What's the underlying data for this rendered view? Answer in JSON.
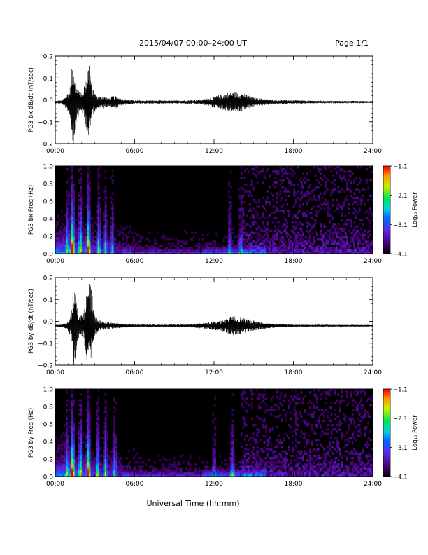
{
  "header": {
    "title": "2015/04/07  00:00–24:00 UT",
    "page": "Page 1/1"
  },
  "footer": {
    "xlabel": "Universal Time (hh:mm)"
  },
  "chart_data": [
    {
      "type": "line",
      "ylabel": "PG3 bx dB/dt (nT/sec)",
      "xlim": [
        0,
        24
      ],
      "ylim": [
        -0.2,
        0.2
      ],
      "yticks": [
        "0.2",
        "0.1",
        "0.0",
        "−0.1",
        "−0.2"
      ],
      "xticks": [
        "00:00",
        "06:00",
        "12:00",
        "18:00",
        "24:00"
      ],
      "baseline": -0.01,
      "envelope": [
        {
          "x": 0.0,
          "amp": 0.006
        },
        {
          "x": 0.5,
          "amp": 0.008
        },
        {
          "x": 0.8,
          "amp": 0.03
        },
        {
          "x": 1.1,
          "amp": 0.06
        },
        {
          "x": 1.35,
          "amp": 0.21
        },
        {
          "x": 1.6,
          "amp": 0.08
        },
        {
          "x": 2.0,
          "amp": 0.04
        },
        {
          "x": 2.4,
          "amp": 0.13
        },
        {
          "x": 2.55,
          "amp": 0.2
        },
        {
          "x": 2.8,
          "amp": 0.06
        },
        {
          "x": 3.2,
          "amp": 0.025
        },
        {
          "x": 3.6,
          "amp": 0.03
        },
        {
          "x": 4.0,
          "amp": 0.02
        },
        {
          "x": 4.5,
          "amp": 0.03
        },
        {
          "x": 5.0,
          "amp": 0.015
        },
        {
          "x": 6.0,
          "amp": 0.008
        },
        {
          "x": 9.0,
          "amp": 0.007
        },
        {
          "x": 11.0,
          "amp": 0.01
        },
        {
          "x": 11.7,
          "amp": 0.02
        },
        {
          "x": 12.6,
          "amp": 0.035
        },
        {
          "x": 13.5,
          "amp": 0.05
        },
        {
          "x": 14.3,
          "amp": 0.04
        },
        {
          "x": 15.0,
          "amp": 0.02
        },
        {
          "x": 16.5,
          "amp": 0.01
        },
        {
          "x": 20.0,
          "amp": 0.006
        },
        {
          "x": 24.0,
          "amp": 0.005
        }
      ]
    },
    {
      "type": "heatmap",
      "ylabel": "PG3 bx Freq (Hz)",
      "xlim": [
        0,
        24
      ],
      "ylim": [
        0,
        1.0
      ],
      "yticks": [
        "1.0",
        "0.8",
        "0.6",
        "0.4",
        "0.2",
        "0.0"
      ],
      "xticks": [
        "00:00",
        "06:00",
        "12:00",
        "18:00",
        "24:00"
      ],
      "colorbar": {
        "label": "Log₁₀ Power",
        "ticks": [
          "−1.1",
          "−2.1",
          "−3.1",
          "−4.1"
        ],
        "range": [
          -4.1,
          -1.1
        ]
      },
      "bursts": [
        {
          "x": 1.3,
          "strength": 0.95
        },
        {
          "x": 2.5,
          "strength": 0.9
        },
        {
          "x": 1.9,
          "strength": 0.6
        },
        {
          "x": 3.3,
          "strength": 0.55
        },
        {
          "x": 3.8,
          "strength": 0.45
        },
        {
          "x": 4.3,
          "strength": 0.4
        },
        {
          "x": 0.9,
          "strength": 0.45
        },
        {
          "x": 13.2,
          "strength": 0.35
        },
        {
          "x": 14.0,
          "strength": 0.3
        }
      ]
    },
    {
      "type": "line",
      "ylabel": "PG3 by dB/dt (nT/sec)",
      "xlim": [
        0,
        24
      ],
      "ylim": [
        -0.2,
        0.2
      ],
      "yticks": [
        "0.2",
        "0.1",
        "0.0",
        "−0.1",
        "−0.2"
      ],
      "xticks": [
        "00:00",
        "06:00",
        "12:00",
        "18:00",
        "24:00"
      ],
      "baseline": -0.02,
      "envelope": [
        {
          "x": 0.0,
          "amp": 0.004
        },
        {
          "x": 0.5,
          "amp": 0.006
        },
        {
          "x": 0.9,
          "amp": 0.015
        },
        {
          "x": 1.2,
          "amp": 0.06
        },
        {
          "x": 1.4,
          "amp": 0.22
        },
        {
          "x": 1.7,
          "amp": 0.06
        },
        {
          "x": 2.1,
          "amp": 0.05
        },
        {
          "x": 2.5,
          "amp": 0.2
        },
        {
          "x": 2.7,
          "amp": 0.18
        },
        {
          "x": 3.0,
          "amp": 0.04
        },
        {
          "x": 3.5,
          "amp": 0.02
        },
        {
          "x": 4.0,
          "amp": 0.015
        },
        {
          "x": 5.0,
          "amp": 0.01
        },
        {
          "x": 6.0,
          "amp": 0.006
        },
        {
          "x": 10.0,
          "amp": 0.006
        },
        {
          "x": 11.5,
          "amp": 0.015
        },
        {
          "x": 12.5,
          "amp": 0.025
        },
        {
          "x": 13.5,
          "amp": 0.045
        },
        {
          "x": 14.5,
          "amp": 0.03
        },
        {
          "x": 16.0,
          "amp": 0.012
        },
        {
          "x": 18.0,
          "amp": 0.005
        },
        {
          "x": 24.0,
          "amp": 0.004
        }
      ]
    },
    {
      "type": "heatmap",
      "ylabel": "PG3 by Freq (Hz)",
      "xlim": [
        0,
        24
      ],
      "ylim": [
        0,
        1.0
      ],
      "yticks": [
        "1.0",
        "0.8",
        "0.6",
        "0.4",
        "0.2",
        "0.0"
      ],
      "xticks": [
        "00:00",
        "06:00",
        "12:00",
        "18:00",
        "24:00"
      ],
      "colorbar": {
        "label": "Log₁₀ Power",
        "ticks": [
          "−1.1",
          "−2.1",
          "−3.1",
          "−4.1"
        ],
        "range": [
          -4.1,
          -1.1
        ]
      },
      "bursts": [
        {
          "x": 1.3,
          "strength": 0.95
        },
        {
          "x": 2.5,
          "strength": 0.95
        },
        {
          "x": 1.9,
          "strength": 0.6
        },
        {
          "x": 3.2,
          "strength": 0.6
        },
        {
          "x": 3.8,
          "strength": 0.55
        },
        {
          "x": 4.5,
          "strength": 0.45
        },
        {
          "x": 0.9,
          "strength": 0.45
        },
        {
          "x": 12.0,
          "strength": 0.3
        },
        {
          "x": 13.4,
          "strength": 0.35
        }
      ]
    }
  ]
}
